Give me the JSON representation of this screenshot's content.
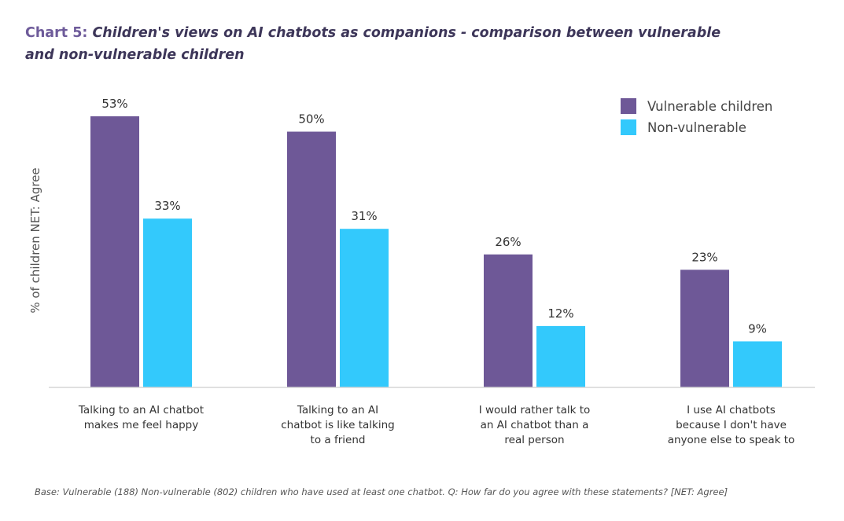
{
  "title": {
    "prefix": "Chart 5:",
    "text": "Children's views on AI chatbots as companions - comparison between vulnerable and non-vulnerable children"
  },
  "footnote": "Base: Vulnerable (188) Non-vulnerable (802) children who have used at least one chatbot. Q: How far do you agree with these statements? [NET: Agree]",
  "colors": {
    "vulnerable": "#6e5897",
    "non_vulnerable": "#33c9fc",
    "axis": "#d6d6d6",
    "text": "#333333"
  },
  "chart_data": {
    "type": "bar",
    "ylabel": "% of children NET: Agree",
    "xlabel": "",
    "ylim": [
      0,
      53
    ],
    "grid": false,
    "legend_position": "top-right",
    "categories": [
      [
        "Talking to an AI chatbot",
        "makes me feel happy"
      ],
      [
        "Talking to an AI",
        "chatbot is like talking",
        "to a friend"
      ],
      [
        "I would rather talk to",
        "an AI chatbot than a",
        "real person"
      ],
      [
        "I use AI chatbots",
        "because I don't have",
        "anyone else to speak to"
      ]
    ],
    "series": [
      {
        "name": "Vulnerable children",
        "values": [
          53,
          50,
          26,
          23
        ],
        "labels": [
          "53%",
          "50%",
          "26%",
          "23%"
        ]
      },
      {
        "name": "Non-vulnerable",
        "values": [
          33,
          31,
          12,
          9
        ],
        "labels": [
          "33%",
          "31%",
          "12%",
          "9%"
        ]
      }
    ]
  }
}
